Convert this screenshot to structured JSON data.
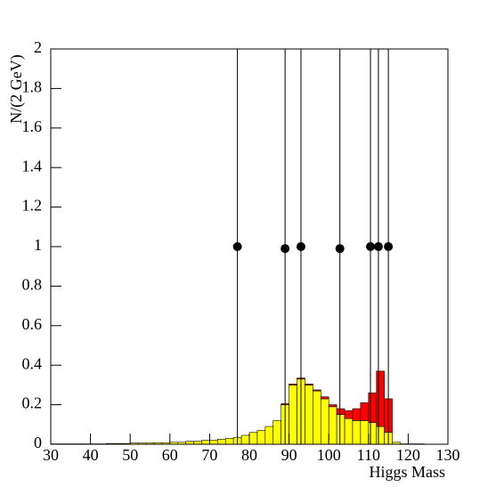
{
  "chart_data": {
    "type": "histogram",
    "ylabel": "N/(2 GeV)",
    "xlabel": "Higgs Mass",
    "bins": [
      30,
      32,
      34,
      36,
      38,
      40,
      42,
      44,
      46,
      48,
      50,
      52,
      54,
      56,
      58,
      60,
      62,
      64,
      66,
      68,
      70,
      72,
      74,
      76,
      78,
      80,
      82,
      84,
      86,
      88,
      90,
      92,
      94,
      96,
      98,
      100,
      102,
      104,
      106,
      108,
      110,
      112,
      114,
      116,
      118,
      120,
      122,
      124,
      126,
      128,
      130
    ],
    "series": [
      {
        "color": "#ffff00",
        "values": [
          0.002,
          0.002,
          0.002,
          0.002,
          0.002,
          0.002,
          0.002,
          0.004,
          0.004,
          0.004,
          0.006,
          0.006,
          0.006,
          0.008,
          0.008,
          0.01,
          0.01,
          0.015,
          0.015,
          0.02,
          0.02,
          0.025,
          0.03,
          0.035,
          0.045,
          0.06,
          0.07,
          0.09,
          0.12,
          0.2,
          0.3,
          0.33,
          0.3,
          0.27,
          0.23,
          0.19,
          0.15,
          0.13,
          0.12,
          0.12,
          0.11,
          0.09,
          0.06,
          0.01,
          0.002,
          0.002,
          0.002,
          0,
          0,
          0
        ]
      },
      {
        "color": "#ff0000",
        "values": [
          0,
          0,
          0,
          0,
          0,
          0,
          0,
          0,
          0,
          0,
          0,
          0,
          0,
          0,
          0,
          0,
          0,
          0,
          0,
          0,
          0,
          0,
          0,
          0,
          0,
          0,
          0,
          0,
          0,
          0.005,
          0.005,
          0.005,
          0.005,
          0.005,
          0.01,
          0.01,
          0.03,
          0.04,
          0.06,
          0.09,
          0.15,
          0.28,
          0.17,
          0,
          0,
          0,
          0,
          0,
          0,
          0
        ]
      }
    ],
    "points": {
      "color": "#000000",
      "x": [
        77,
        89,
        93,
        102.8,
        110.5,
        112.5,
        115
      ],
      "y": [
        1.0,
        0.99,
        1.0,
        0.99,
        1.0,
        1.0,
        1.0
      ]
    },
    "xlim": [
      30,
      130
    ],
    "xticks": [
      30,
      40,
      50,
      60,
      70,
      80,
      90,
      100,
      110,
      120,
      130
    ],
    "ylim": [
      0,
      2
    ],
    "yticks": [
      0,
      0.2,
      0.4,
      0.6,
      0.8,
      1,
      1.2,
      1.4,
      1.6,
      1.8,
      2
    ]
  }
}
